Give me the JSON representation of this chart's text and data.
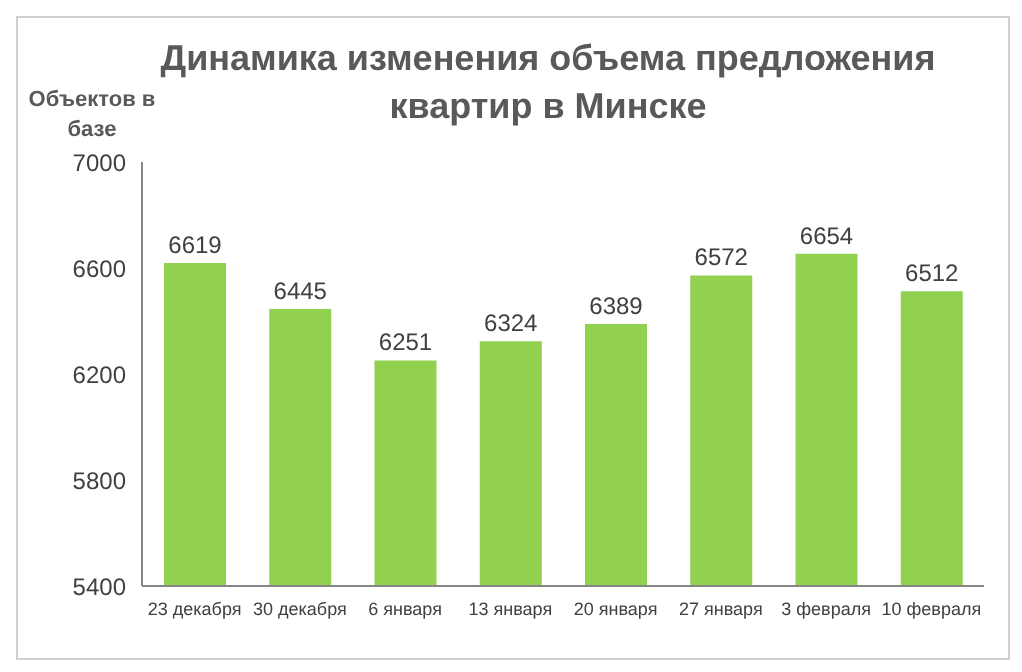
{
  "chart_data": {
    "type": "bar",
    "title": "Динамика изменения объема предложения квартир в Минске",
    "ylabel": "Объектов в базе",
    "categories": [
      "23 декабря",
      "30 декабря",
      "6 января",
      "13 января",
      "20 января",
      "27 января",
      "3 февраля",
      "10 февраля"
    ],
    "values": [
      6619,
      6445,
      6251,
      6324,
      6389,
      6572,
      6654,
      6512
    ],
    "color": "#92d050",
    "ylim": [
      5400,
      7000
    ],
    "yticks": [
      5400,
      5800,
      6200,
      6600,
      7000
    ],
    "grid": false,
    "data_labels": true
  }
}
